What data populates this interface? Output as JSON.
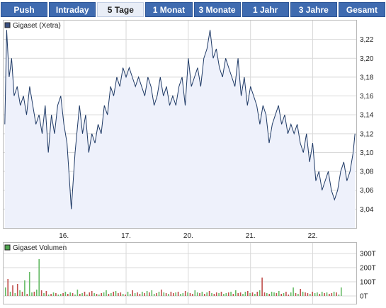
{
  "tabs": [
    {
      "label": "Push",
      "active": false
    },
    {
      "label": "Intraday",
      "active": false
    },
    {
      "label": "5 Tage",
      "active": true
    },
    {
      "label": "1 Monat",
      "active": false
    },
    {
      "label": "3 Monate",
      "active": false
    },
    {
      "label": "1 Jahr",
      "active": false
    },
    {
      "label": "3 Jahre",
      "active": false
    },
    {
      "label": "Gesamt",
      "active": false
    }
  ],
  "colors": {
    "price_line": "#1f3a66",
    "price_fill": "#eef1fb",
    "legend_price": "#3a4f80",
    "legend_volume": "#4fa64f",
    "vol_up": "#66bb66",
    "vol_down": "#c0504d",
    "grid": "#d9d9d9"
  },
  "chart_data": [
    {
      "type": "area",
      "legend": "Gigaset (Xetra)",
      "legend_position": "top-left",
      "x_ticks": [
        {
          "label": "16.",
          "x": 1
        },
        {
          "label": "17.",
          "x": 2
        },
        {
          "label": "20.",
          "x": 3
        },
        {
          "label": "21.",
          "x": 4
        },
        {
          "label": "22.",
          "x": 5
        }
      ],
      "xlim": [
        0.03,
        5.7
      ],
      "ylim": [
        3.02,
        3.24
      ],
      "y_ticks": [
        "3,04",
        "3,06",
        "3,08",
        "3,10",
        "3,12",
        "3,14",
        "3,16",
        "3,18",
        "3,20",
        "3,22"
      ],
      "y_tick_values": [
        3.04,
        3.06,
        3.08,
        3.1,
        3.12,
        3.14,
        3.16,
        3.18,
        3.2,
        3.22
      ],
      "grid": true,
      "series": [
        {
          "x": [
            0.05,
            0.08,
            0.12,
            0.16,
            0.2,
            0.25,
            0.3,
            0.35,
            0.4,
            0.45,
            0.5,
            0.55,
            0.6,
            0.65,
            0.7,
            0.75,
            0.8,
            0.85,
            0.9,
            0.95,
            1.0,
            1.05,
            1.1,
            1.12,
            1.18,
            1.25,
            1.3,
            1.35,
            1.4,
            1.45,
            1.5,
            1.55,
            1.6,
            1.65,
            1.7,
            1.75,
            1.8,
            1.85,
            1.9,
            1.95,
            2.0,
            2.05,
            2.1,
            2.15,
            2.2,
            2.25,
            2.3,
            2.35,
            2.4,
            2.45,
            2.5,
            2.55,
            2.6,
            2.65,
            2.7,
            2.75,
            2.8,
            2.85,
            2.9,
            2.95,
            3.0,
            3.05,
            3.1,
            3.15,
            3.2,
            3.25,
            3.3,
            3.35,
            3.4,
            3.45,
            3.5,
            3.55,
            3.6,
            3.65,
            3.7,
            3.75,
            3.8,
            3.85,
            3.9,
            3.95,
            4.0,
            4.05,
            4.1,
            4.15,
            4.2,
            4.25,
            4.3,
            4.35,
            4.4,
            4.45,
            4.5,
            4.55,
            4.6,
            4.65,
            4.7,
            4.75,
            4.8,
            4.85,
            4.9,
            4.95,
            5.0,
            5.05,
            5.1,
            5.15,
            5.2,
            5.25,
            5.3,
            5.35,
            5.4,
            5.45,
            5.5,
            5.55,
            5.6,
            5.65,
            5.68
          ],
          "y": [
            3.13,
            3.23,
            3.18,
            3.2,
            3.16,
            3.17,
            3.15,
            3.16,
            3.14,
            3.17,
            3.15,
            3.13,
            3.14,
            3.12,
            3.15,
            3.1,
            3.14,
            3.12,
            3.15,
            3.16,
            3.13,
            3.11,
            3.06,
            3.04,
            3.1,
            3.15,
            3.12,
            3.14,
            3.1,
            3.12,
            3.11,
            3.13,
            3.12,
            3.15,
            3.14,
            3.17,
            3.16,
            3.18,
            3.17,
            3.19,
            3.18,
            3.19,
            3.18,
            3.17,
            3.18,
            3.17,
            3.16,
            3.18,
            3.17,
            3.15,
            3.16,
            3.18,
            3.16,
            3.17,
            3.15,
            3.16,
            3.15,
            3.17,
            3.18,
            3.15,
            3.2,
            3.17,
            3.18,
            3.19,
            3.17,
            3.2,
            3.21,
            3.23,
            3.2,
            3.21,
            3.19,
            3.18,
            3.2,
            3.19,
            3.18,
            3.17,
            3.2,
            3.16,
            3.18,
            3.15,
            3.17,
            3.16,
            3.15,
            3.13,
            3.15,
            3.14,
            3.11,
            3.13,
            3.14,
            3.15,
            3.13,
            3.14,
            3.12,
            3.13,
            3.12,
            3.13,
            3.11,
            3.1,
            3.12,
            3.09,
            3.11,
            3.07,
            3.08,
            3.06,
            3.07,
            3.08,
            3.06,
            3.05,
            3.06,
            3.08,
            3.09,
            3.07,
            3.08,
            3.1,
            3.12
          ]
        }
      ]
    },
    {
      "type": "bar",
      "legend": "Gigaset Volumen",
      "legend_position": "top-left",
      "y_ticks": [
        "300T",
        "200T",
        "100T",
        "0T"
      ],
      "y_tick_values": [
        300,
        200,
        100,
        0
      ],
      "ylim": [
        0,
        300
      ],
      "grid": true,
      "series": [
        {
          "name": "",
          "values": [
            60,
            120,
            30,
            75,
            20,
            85,
            40,
            30,
            110,
            15,
            170,
            25,
            30,
            45,
            260,
            40,
            20,
            35,
            10,
            15,
            25,
            20,
            10,
            15,
            20,
            30,
            15,
            25,
            20,
            10,
            45,
            15,
            20,
            30,
            10,
            25,
            35,
            20,
            15,
            10,
            20,
            25,
            40,
            15,
            20,
            30,
            35,
            20,
            25,
            15,
            10,
            30,
            15,
            40,
            20,
            25,
            15,
            30,
            20,
            35,
            25,
            40,
            15,
            20,
            30,
            45,
            25,
            20,
            15,
            30,
            20,
            25,
            30,
            15,
            20,
            35,
            25,
            20,
            15,
            40,
            25,
            20,
            30,
            15,
            25,
            35,
            20,
            15,
            25,
            20,
            30,
            15,
            20,
            25,
            30,
            15,
            40,
            20,
            25,
            15,
            30,
            35,
            20,
            25,
            15,
            30,
            40,
            130,
            25,
            20,
            15,
            30,
            25,
            20,
            35,
            15,
            20,
            30,
            10,
            25,
            60,
            20,
            15,
            50,
            30,
            25,
            20,
            15,
            30,
            20,
            25,
            15,
            30,
            20,
            25,
            15,
            20,
            30,
            25,
            10,
            60
          ],
          "up": [
            1,
            0,
            1,
            0,
            1,
            0,
            1,
            0,
            1,
            0,
            1,
            1,
            0,
            1,
            1,
            0,
            1,
            0,
            1,
            0,
            1,
            0,
            1,
            1,
            0,
            1,
            0,
            1,
            0,
            1,
            1,
            0,
            1,
            0,
            1,
            0,
            0,
            1,
            0,
            1,
            0,
            1,
            1,
            0,
            1,
            0,
            1,
            0,
            0,
            1,
            0,
            1,
            1,
            0,
            1,
            0,
            0,
            1,
            0,
            1,
            0,
            1,
            1,
            0,
            1,
            0,
            1,
            0,
            1,
            0,
            0,
            1,
            0,
            1,
            1,
            0,
            1,
            0,
            0,
            1,
            1,
            0,
            1,
            0,
            1,
            0,
            1,
            0,
            0,
            1,
            0,
            1,
            1,
            0,
            1,
            0,
            1,
            0,
            0,
            1,
            1,
            0,
            1,
            0,
            1,
            0,
            1,
            0,
            0,
            1,
            0,
            1,
            1,
            0,
            1,
            0,
            1,
            0,
            0,
            1,
            1,
            0,
            1,
            0,
            1,
            0,
            0,
            1,
            0,
            1,
            1,
            0,
            1,
            0,
            1,
            0,
            0,
            1,
            0,
            1,
            1
          ]
        }
      ]
    }
  ]
}
